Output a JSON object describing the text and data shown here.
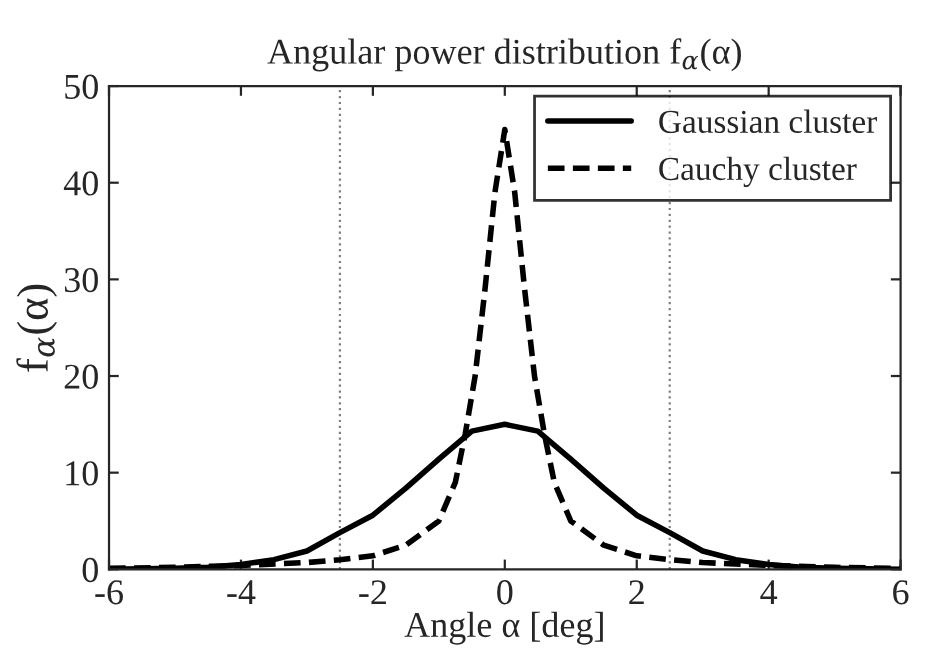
{
  "chart_data": {
    "type": "line",
    "title": "Angular power distribution f$_{α}$(α)",
    "xlabel": "Angle α [deg]",
    "ylabel": "f$_{α}$(α)",
    "xlim": [
      -6,
      6
    ],
    "ylim": [
      0,
      50
    ],
    "xticks": [
      -6,
      -4,
      -2,
      0,
      2,
      4,
      6
    ],
    "yticks": [
      0,
      10,
      20,
      30,
      40,
      50
    ],
    "grid": false,
    "legend": "top right",
    "marker": "none",
    "series": [
      {
        "name": "Gaussian cluster",
        "color": "#000000",
        "line_style": "solid",
        "x": [
          -6,
          -5,
          -4.5,
          -4,
          -3.5,
          -3,
          -2.5,
          -2,
          -1.5,
          -1,
          -0.5,
          0,
          0.5,
          1,
          1.5,
          2,
          2.5,
          3,
          3.5,
          4,
          4.5,
          5,
          6
        ],
        "values": [
          0,
          0.1,
          0.2,
          0.5,
          1,
          1.9,
          3.8,
          5.6,
          8.4,
          11.4,
          14.3,
          15,
          14.3,
          11.4,
          8.4,
          5.6,
          3.8,
          1.9,
          1,
          0.5,
          0.2,
          0.1,
          0
        ]
      },
      {
        "name": "Cauchy cluster",
        "color": "#000000",
        "line_style": "dashed",
        "x": [
          -6,
          -5,
          -4,
          -3,
          -2.5,
          -2,
          -1.5,
          -1,
          -0.75,
          -0.6,
          -0.45,
          -0.3,
          -0.15,
          0,
          0.15,
          0.3,
          0.45,
          0.6,
          0.75,
          1,
          1.5,
          2,
          2.5,
          3,
          4,
          5,
          6
        ],
        "values": [
          0.1,
          0.2,
          0.4,
          0.7,
          1,
          1.4,
          2.5,
          5,
          9,
          14,
          20,
          29,
          39,
          45.5,
          39,
          29,
          20,
          14,
          9,
          5,
          2.5,
          1.4,
          1,
          0.7,
          0.4,
          0.2,
          0.1
        ]
      }
    ],
    "ref_lines": [
      {
        "axis": "x",
        "value": -2.5,
        "color": "#808080",
        "line_style": "dotted"
      },
      {
        "axis": "x",
        "value": 2.5,
        "color": "#808080",
        "line_style": "dotted"
      }
    ]
  }
}
